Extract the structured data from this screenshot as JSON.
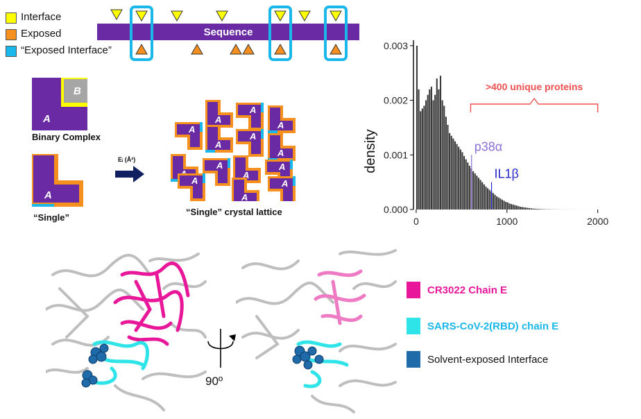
{
  "legend_top": {
    "interface": "Interface",
    "exposed": "Exposed",
    "exposed_interface": "“Exposed Interface”"
  },
  "sequence_label": "Sequence",
  "binary_complex": {
    "label": "Binary Complex",
    "chain_a": "A",
    "chain_b": "B"
  },
  "single": {
    "label": "“Single”",
    "chain_a": "A"
  },
  "arrow_label": "Eᵢ (Å²)",
  "lattice": {
    "label": "“Single” crystal lattice",
    "chain_letter": "A"
  },
  "histogram_annotation": ">400 unique proteins",
  "markers": {
    "p38": "p38α",
    "il1b": "IL1β"
  },
  "chart_data": {
    "type": "bar",
    "title": "",
    "xlabel": "",
    "ylabel": "density",
    "xlim": [
      -30,
      2400
    ],
    "ylim": [
      0,
      0.0031
    ],
    "x_ticks": [
      "0",
      "1000",
      "2000"
    ],
    "y_ticks": [
      "0.000",
      "0.001",
      "0.002",
      "0.003"
    ],
    "bin_width": 20,
    "bin_starts": [
      0,
      20,
      40,
      60,
      80,
      100,
      120,
      140,
      160,
      180,
      200,
      220,
      240,
      260,
      280,
      300,
      320,
      340,
      360,
      380,
      400,
      420,
      440,
      460,
      480,
      500,
      520,
      540,
      560,
      580,
      600,
      620,
      640,
      660,
      680,
      700,
      720,
      740,
      760,
      780,
      800,
      820,
      840,
      860,
      880,
      900,
      920,
      940,
      960,
      980,
      1000,
      1020,
      1040,
      1060,
      1080,
      1100,
      1120,
      1140,
      1160,
      1180,
      1200,
      1220,
      1240,
      1260,
      1280,
      1300,
      1320,
      1340,
      1360,
      1380,
      1400,
      1420,
      1440,
      1460,
      1480,
      1500,
      1520,
      1540,
      1560,
      1580,
      1600,
      1620,
      1640,
      1660,
      1680,
      1700,
      1720,
      1740,
      1760,
      1780,
      1800,
      1820,
      1840,
      1860,
      1880,
      1900,
      1920,
      1940,
      1960,
      1980
    ],
    "values": [
      0.003,
      0.0022,
      0.0018,
      0.00185,
      0.0019,
      0.002,
      0.0021,
      0.0022,
      0.00225,
      0.002,
      0.0021,
      0.0024,
      0.0022,
      0.00245,
      0.002,
      0.0019,
      0.0017,
      0.00155,
      0.0014,
      0.00135,
      0.0013,
      0.00125,
      0.0012,
      0.00115,
      0.0011,
      0.00105,
      0.00098,
      0.00092,
      0.00086,
      0.0008,
      0.00075,
      0.0007,
      0.00066,
      0.00062,
      0.00058,
      0.00054,
      0.0005,
      0.00046,
      0.00042,
      0.00039,
      0.00036,
      0.00033,
      0.0003,
      0.00027,
      0.00024,
      0.00022,
      0.0002,
      0.00018,
      0.00016,
      0.00014,
      0.00013,
      0.00011,
      0.0001,
      9e-05,
      8e-05,
      7e-05,
      6e-05,
      5e-05,
      4.5e-05,
      4e-05,
      3.5e-05,
      3e-05,
      2.5e-05,
      2e-05,
      1.8e-05,
      1.5e-05,
      1.2e-05,
      1e-05,
      8e-06,
      7e-06,
      6e-06,
      5e-06,
      4e-06,
      4e-06,
      3e-06,
      3e-06,
      2e-06,
      2e-06,
      2e-06,
      1e-06,
      1e-06,
      1e-06,
      1e-06,
      1e-06,
      1e-06,
      8e-07,
      7e-07,
      6e-07,
      5e-07,
      5e-07,
      4e-07,
      4e-07,
      3e-07,
      3e-07,
      3e-07,
      2e-07,
      2e-07,
      2e-07,
      2e-07,
      1e-07
    ],
    "markers": [
      {
        "label": "p38α",
        "x": 610,
        "y": 0.001
      },
      {
        "label": "IL1β",
        "x": 830,
        "y": 0.0005
      }
    ],
    "bracket_range": [
      600,
      2000
    ],
    "colors": {
      "bars": "#3a3a3a",
      "p38": "#8a6fd6",
      "il1b": "#2525c8",
      "annotation": "#f05050"
    }
  },
  "structure": {
    "rotation_label": "90º"
  },
  "legend_bottom": {
    "cr3022": "CR3022 Chain E",
    "sars": "SARS-CoV-2(RBD)  chain E",
    "solvent": "Solvent-exposed Interface"
  },
  "colors": {
    "interface": "#ffff00",
    "exposed": "#f5901e",
    "exposed_interface": "#1ab7ea",
    "purple": "#6a2aa3",
    "magenta": "#e8179a",
    "cyan": "#2ee4e8",
    "navy": "#1f6aa8"
  }
}
